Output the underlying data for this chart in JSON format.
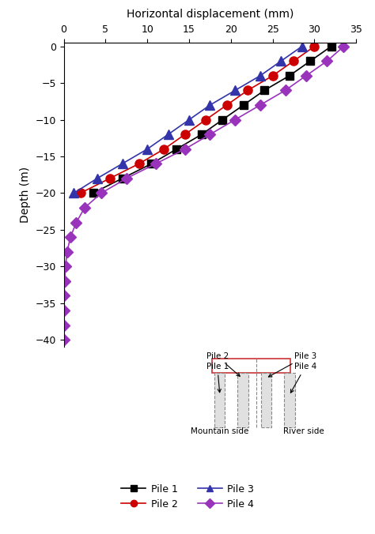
{
  "xlabel": "Horizontal displacement (mm)",
  "ylabel": "Depth (m)",
  "xlim": [
    0,
    35
  ],
  "ylim": [
    -41,
    0.5
  ],
  "xticks": [
    0,
    5,
    10,
    15,
    20,
    25,
    30,
    35
  ],
  "yticks": [
    0,
    -5,
    -10,
    -15,
    -20,
    -25,
    -30,
    -35,
    -40
  ],
  "pile1": {
    "depth": [
      0,
      -2,
      -4,
      -6,
      -8,
      -10,
      -12,
      -14,
      -16,
      -18,
      -20
    ],
    "disp": [
      32.0,
      29.5,
      27.0,
      24.0,
      21.5,
      19.0,
      16.5,
      13.5,
      10.5,
      7.0,
      3.5
    ],
    "color": "#000000",
    "marker": "s",
    "label": "Pile 1",
    "markersize": 7
  },
  "pile2": {
    "depth": [
      0,
      -2,
      -4,
      -6,
      -8,
      -10,
      -12,
      -14,
      -16,
      -18,
      -20
    ],
    "disp": [
      30.0,
      27.5,
      25.0,
      22.0,
      19.5,
      17.0,
      14.5,
      12.0,
      9.0,
      5.5,
      2.0
    ],
    "color": "#cc0000",
    "marker": "o",
    "label": "Pile 2",
    "markersize": 8
  },
  "pile3": {
    "depth": [
      0,
      -2,
      -4,
      -6,
      -8,
      -10,
      -12,
      -14,
      -16,
      -18,
      -20
    ],
    "disp": [
      28.5,
      26.0,
      23.5,
      20.5,
      17.5,
      15.0,
      12.5,
      10.0,
      7.0,
      4.0,
      1.2
    ],
    "color": "#3333aa",
    "marker": "^",
    "label": "Pile 3",
    "markersize": 8
  },
  "pile4": {
    "depth": [
      0,
      -2,
      -4,
      -6,
      -8,
      -10,
      -12,
      -14,
      -16,
      -18,
      -20,
      -22,
      -24,
      -26,
      -28,
      -30,
      -32,
      -34,
      -36,
      -38,
      -40
    ],
    "disp": [
      33.5,
      31.5,
      29.0,
      26.5,
      23.5,
      20.5,
      17.5,
      14.5,
      11.0,
      7.5,
      4.5,
      2.5,
      1.5,
      0.8,
      0.4,
      0.2,
      0.1,
      0.05,
      0.02,
      0.01,
      0.0
    ],
    "color": "#9933bb",
    "marker": "D",
    "label": "Pile 4",
    "markersize": 7
  }
}
